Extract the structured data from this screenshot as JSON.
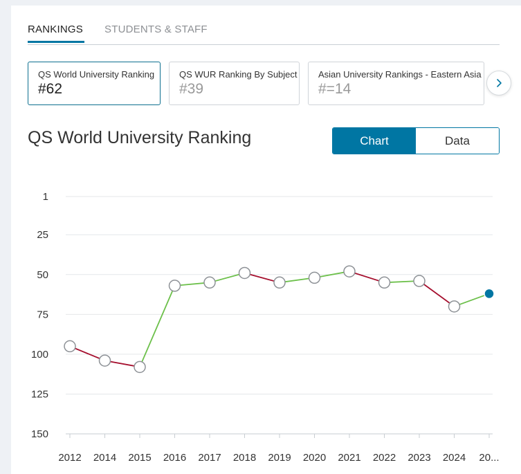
{
  "tabs": [
    {
      "label": "RANKINGS",
      "active": true
    },
    {
      "label": "STUDENTS & STAFF",
      "active": false
    }
  ],
  "cards": [
    {
      "title": "QS World University Ranking",
      "value": "#62",
      "active": true
    },
    {
      "title": "QS WUR Ranking By Subject",
      "value": "#39",
      "active": false
    },
    {
      "title": "Asian University Rankings - Eastern Asia",
      "value": "#=14",
      "active": false
    }
  ],
  "next_icon": "chevron-right-icon",
  "chart_title": "QS World University Ranking",
  "view_toggle": {
    "chart_label": "Chart",
    "data_label": "Data",
    "selected": "Chart"
  },
  "colors": {
    "accent": "#0076a3",
    "rise": "#6cc04a",
    "fall": "#a50e2d"
  },
  "chart_data": {
    "type": "line",
    "title": "",
    "xlabel": "",
    "ylabel": "",
    "y_inverted": true,
    "ylim": [
      1,
      150
    ],
    "y_ticks": [
      1,
      25,
      50,
      75,
      100,
      125,
      150
    ],
    "categories": [
      "2012",
      "2014",
      "2015",
      "2016",
      "2017",
      "2018",
      "2019",
      "2020",
      "2021",
      "2022",
      "2023",
      "2024",
      "20..."
    ],
    "values": [
      95,
      104,
      108,
      57,
      55,
      49,
      55,
      52,
      48,
      55,
      54,
      70,
      62
    ],
    "grid": true,
    "legend": "none"
  }
}
